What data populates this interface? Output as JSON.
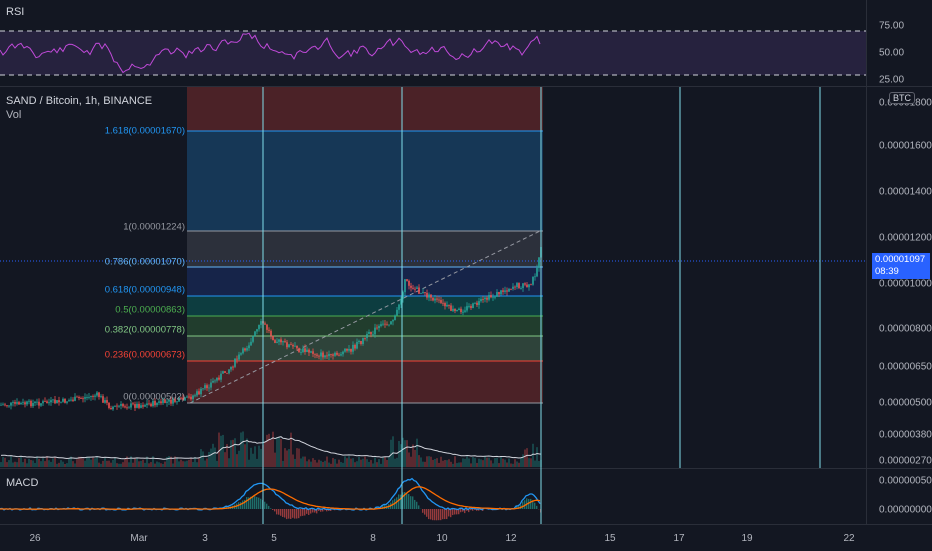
{
  "rsi": {
    "label": "RSI",
    "ticks": [
      "75.00",
      "50.00",
      "25.00"
    ],
    "line_color": "#c04ad9",
    "band_color": "#7e57c2"
  },
  "main": {
    "symbol_title": "SAND / Bitcoin, 1h, BINANCE",
    "vol_label": "Vol",
    "currency_badge": "BTC",
    "current_price": "0.00001097",
    "countdown": "08:39",
    "price_ticks": [
      "0.00001800",
      "0.00001600",
      "0.00001400",
      "0.00001200",
      "0.00001000",
      "0.00000800",
      "0.00000650",
      "0.00000500",
      "0.00000380",
      "0.00000270"
    ],
    "fib_levels": [
      {
        "label": "1.618(0.00001670)",
        "color": "#2196f3"
      },
      {
        "label": "1(0.00001224)",
        "color": "#9598a1"
      },
      {
        "label": "0.786(0.00001070)",
        "color": "#64b5f6"
      },
      {
        "label": "0.618(0.00000948)",
        "color": "#2196f3"
      },
      {
        "label": "0.5(0.00000863)",
        "color": "#4caf50"
      },
      {
        "label": "0.382(0.00000778)",
        "color": "#81c784"
      },
      {
        "label": "0.236(0.00000673)",
        "color": "#f44336"
      },
      {
        "label": "0(0.00000502)",
        "color": "#9598a1"
      }
    ]
  },
  "macd": {
    "label": "MACD",
    "ticks": [
      "0.00000050",
      "0.00000000"
    ],
    "macd_color": "#2196f3",
    "signal_color": "#ff6d00"
  },
  "xaxis": {
    "ticks": [
      "26",
      "Mar",
      "3",
      "5",
      "8",
      "10",
      "12",
      "15",
      "17",
      "19",
      "22"
    ]
  }
}
